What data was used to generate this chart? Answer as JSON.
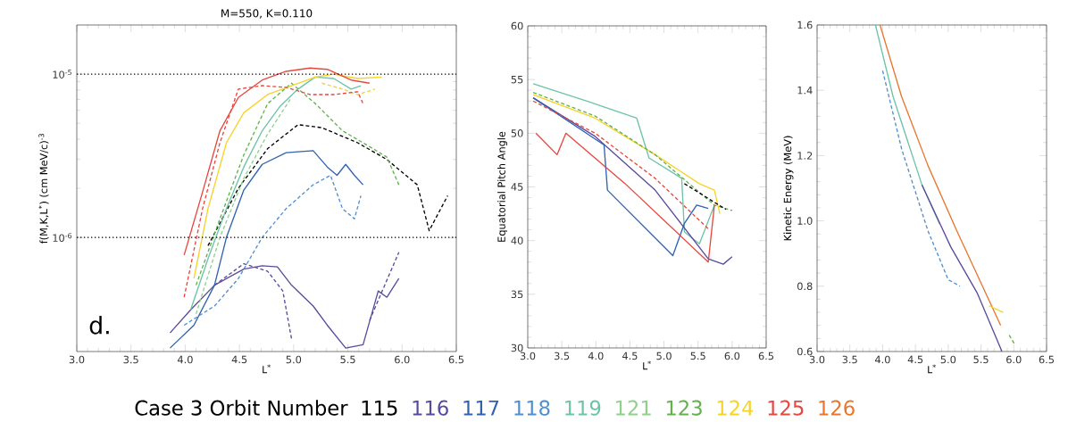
{
  "chart_data": [
    {
      "type": "line",
      "title": "M=550, K=0.110",
      "xlabel": "L$^{*}$",
      "ylabel": "f(M,K,L$^{*}$) (cm MeV/c)$^{-3}$",
      "log": "y",
      "legend": "bottom",
      "legend_title": "Case 3  Orbit Number",
      "xlim": [
        3,
        6.5
      ],
      "xticks": [
        {
          "value": 3,
          "label": "3.0"
        },
        3.5,
        {
          "value": 4,
          "label": "4.0"
        },
        4.5,
        {
          "value": 5,
          "label": "5.0"
        },
        5.5,
        {
          "value": 6,
          "label": "6.0"
        },
        6.5
      ],
      "ylim": [
        2e-07,
        2e-05
      ],
      "yticks": [
        {
          "value": 1e-06,
          "label": "10$^{-6}$"
        },
        {
          "value": 1e-05,
          "label": "10$^{-5}$"
        }
      ],
      "ref_lines": [
        {
          "axis": "y",
          "value": 1e-05,
          "line_style": "dotted",
          "color": "#000000"
        },
        {
          "axis": "y",
          "value": 1e-06,
          "line_style": "dotted",
          "color": "#000000"
        }
      ],
      "annotations": [
        "d."
      ],
      "series": [
        {
          "name": "115",
          "color": "#000000",
          "line_style": "dashed",
          "x": [
            4.21,
            4.49,
            4.76,
            5.04,
            5.26,
            5.59,
            5.86,
            6.14,
            6.25,
            6.42
          ],
          "values": [
            8.9e-07,
            2e-06,
            3.5e-06,
            4.9e-06,
            4.7e-06,
            3.8e-06,
            3e-06,
            2.1e-06,
            1.1e-06,
            1.8e-06
          ]
        },
        {
          "name": "116",
          "color": "#5a4a9e",
          "line_style": "solid",
          "x": [
            3.86,
            4.05,
            4.27,
            4.54,
            4.71,
            4.85,
            4.98,
            5.18,
            5.31,
            5.48,
            5.64,
            5.78,
            5.86,
            5.97
          ],
          "values": [
            2.6e-07,
            3.6e-07,
            5.1e-07,
            6.4e-07,
            6.7e-07,
            6.6e-07,
            5.1e-07,
            3.8e-07,
            2.9e-07,
            2.1e-07,
            2.2e-07,
            4.7e-07,
            4.3e-07,
            5.6e-07
          ]
        },
        {
          "color": "#5a4a9e",
          "line_style": "dashed",
          "x": [
            4.27,
            4.54,
            4.76,
            4.9,
            4.98,
            5.3,
            5.7,
            5.97
          ],
          "values": [
            5.1e-07,
            6.9e-07,
            6.2e-07,
            4.7e-07,
            2.4e-07,
            null,
            3.1e-07,
            8.1e-07
          ]
        },
        {
          "name": "117",
          "color": "#2f62b0",
          "line_style": "solid",
          "x": [
            3.86,
            4.08,
            4.27,
            4.38,
            4.54,
            4.71,
            4.93,
            5.18,
            5.31,
            5.4,
            5.48,
            5.56,
            5.64
          ],
          "values": [
            2.1e-07,
            2.9e-07,
            5.1e-07,
            1e-06,
            1.95e-06,
            2.8e-06,
            3.3e-06,
            3.4e-06,
            2.7e-06,
            2.4e-06,
            2.8e-06,
            2.4e-06,
            2.1e-06
          ]
        },
        {
          "name": "118",
          "color": "#4f8fd0",
          "line_style": "dashed",
          "x": [
            3.99,
            4.27,
            4.49,
            4.71,
            4.93,
            5.18,
            5.34,
            5.45,
            5.56,
            5.62
          ],
          "values": [
            2.9e-07,
            3.8e-07,
            5.6e-07,
            1e-06,
            1.5e-06,
            2.1e-06,
            2.4e-06,
            1.5e-06,
            1.3e-06,
            1.8e-06
          ]
        },
        {
          "name": "119",
          "color": "#6cc3a8",
          "line_style": "solid",
          "x": [
            4.05,
            4.21,
            4.38,
            4.54,
            4.71,
            4.87,
            5.04,
            5.2,
            5.37,
            5.53,
            5.62
          ],
          "values": [
            3.6e-07,
            7.4e-07,
            1.5e-06,
            2.7e-06,
            4.5e-06,
            6.3e-06,
            8.1e-06,
            9.6e-06,
            9.4e-06,
            8.1e-06,
            8.5e-06
          ]
        },
        {
          "name": "121",
          "color": "#8fd08a",
          "line_style": "dashed",
          "x": [
            4.1,
            4.32,
            4.54,
            4.76,
            4.98
          ],
          "values": [
            3.4e-07,
            1e-06,
            2.3e-06,
            4.3e-06,
            7.2e-06
          ]
        },
        {
          "name": "123",
          "color": "#62b24c",
          "line_style": "dashed",
          "x": [
            4.1,
            4.32,
            4.54,
            4.76,
            4.98,
            5.2,
            5.45,
            5.73,
            5.86,
            5.97
          ],
          "values": [
            5.1e-07,
            1.3e-06,
            3.2e-06,
            6.6e-06,
            8.8e-06,
            6.6e-06,
            4.5e-06,
            3.5e-06,
            3.1e-06,
            2.1e-06
          ]
        },
        {
          "name": "124",
          "color": "#f5d327",
          "line_style": "solid",
          "x": [
            4.08,
            4.21,
            4.38,
            4.54,
            4.76,
            4.98,
            5.2,
            5.37,
            5.59,
            5.81
          ],
          "values": [
            5.6e-07,
            1.5e-06,
            3.8e-06,
            5.8e-06,
            7.5e-06,
            8.5e-06,
            9.6e-06,
            1e-05,
            9.4e-06,
            9.6e-06
          ]
        },
        {
          "color": "#f5d327",
          "line_style": "dashed",
          "x": [
            5.26,
            5.45,
            5.59,
            5.75
          ],
          "values": [
            8.8e-06,
            8.1e-06,
            7.5e-06,
            8.1e-06
          ]
        },
        {
          "name": "125",
          "color": "#e8473f",
          "line_style": "solid",
          "x": [
            3.99,
            4.16,
            4.32,
            4.49,
            4.71,
            4.93,
            5.15,
            5.31,
            5.53,
            5.7
          ],
          "values": [
            7.8e-07,
            1.9e-06,
            4.5e-06,
            7.2e-06,
            9.2e-06,
            1.04e-05,
            1.09e-05,
            1.07e-05,
            9.2e-06,
            8.8e-06
          ]
        },
        {
          "color": "#e8473f",
          "line_style": "dashed",
          "x": [
            3.99,
            4.16,
            4.32,
            4.49,
            4.71,
            4.93,
            5.15,
            5.37,
            5.59,
            5.64
          ],
          "values": [
            4.3e-07,
            1.5e-06,
            3.8e-06,
            8.1e-06,
            8.5e-06,
            8.3e-06,
            7.5e-06,
            7.5e-06,
            7.8e-06,
            6.6e-06
          ]
        }
      ]
    },
    {
      "type": "line",
      "xlabel": "L$^{*}$",
      "ylabel": "Equatorial Pitch Angle",
      "xlim": [
        3,
        6.5
      ],
      "xticks": [
        {
          "value": 3,
          "label": "3.0"
        },
        3.5,
        {
          "value": 4,
          "label": "4.0"
        },
        4.5,
        {
          "value": 5,
          "label": "5.0"
        },
        5.5,
        {
          "value": 6,
          "label": "6.0"
        },
        6.5
      ],
      "ylim": [
        30,
        60
      ],
      "yticks": [
        30,
        35,
        40,
        45,
        50,
        55,
        60
      ],
      "series": [
        {
          "color": "#6cc3a8",
          "line_style": "solid",
          "x": [
            3.08,
            3.86,
            4.6,
            4.78,
            5.26,
            5.3,
            5.52,
            5.74
          ],
          "values": [
            54.6,
            53.0,
            51.4,
            47.7,
            45.8,
            40.8,
            39.7,
            43.3
          ]
        },
        {
          "color": "#f5d327",
          "line_style": "solid",
          "x": [
            3.08,
            3.99,
            4.87,
            5.52,
            5.74,
            5.82
          ],
          "values": [
            53.6,
            51.4,
            48.0,
            45.3,
            44.7,
            42.5
          ]
        },
        {
          "color": "#62b24c",
          "line_style": "dashed",
          "x": [
            3.08,
            3.99,
            4.87,
            5.74,
            6.0
          ],
          "values": [
            53.8,
            51.6,
            48.0,
            43.3,
            42.8
          ]
        },
        {
          "color": "#5a4a9e",
          "line_style": "solid",
          "x": [
            3.08,
            3.99,
            4.87,
            5.65,
            5.87,
            6.0
          ],
          "values": [
            53.3,
            49.7,
            44.7,
            38.3,
            37.8,
            38.5
          ]
        },
        {
          "color": "#2f62b0",
          "line_style": "solid",
          "x": [
            3.08,
            4.12,
            4.17,
            5.13,
            5.3,
            5.48,
            5.65
          ],
          "values": [
            53.3,
            48.9,
            44.7,
            38.6,
            41.6,
            43.3,
            43.0
          ]
        },
        {
          "color": "#e8473f",
          "line_style": "solid",
          "x": [
            3.12,
            3.43,
            3.56,
            4.43,
            5.65,
            5.74
          ],
          "values": [
            50.0,
            48.0,
            50.0,
            45.3,
            38.0,
            43.3
          ]
        },
        {
          "color": "#e8473f",
          "line_style": "dashed",
          "x": [
            3.08,
            3.99,
            4.87,
            5.65
          ],
          "values": [
            53.0,
            50.0,
            45.8,
            41.1
          ]
        },
        {
          "color": "#000000",
          "line_style": "dashed",
          "x": [
            5.3,
            5.91
          ],
          "values": [
            45.3,
            42.9
          ]
        }
      ]
    },
    {
      "type": "line",
      "xlabel": "L$^{*}$",
      "ylabel": "Kinetic Energy (MeV)",
      "xlim": [
        3,
        6.5
      ],
      "xticks": [
        {
          "value": 3,
          "label": "3.0"
        },
        3.5,
        {
          "value": 4,
          "label": "4.0"
        },
        4.5,
        {
          "value": 5,
          "label": "5.0"
        },
        5.5,
        {
          "value": 6,
          "label": "6.0"
        },
        6.5
      ],
      "ylim": [
        0.6,
        1.6
      ],
      "yticks": [
        0.6,
        0.8,
        {
          "value": 1,
          "label": "1.0"
        },
        1.2,
        1.4,
        1.6
      ],
      "series": [
        {
          "name": "126",
          "color": "#e8762f",
          "line_style": "solid",
          "x": [
            3.96,
            4.29,
            4.69,
            5.13,
            5.8
          ],
          "values": [
            1.6,
            1.38,
            1.17,
            0.97,
            0.68
          ]
        },
        {
          "color": "#6cc3a8",
          "line_style": "solid",
          "x": [
            3.89,
            4.16,
            4.6,
            4.87
          ],
          "values": [
            1.6,
            1.38,
            1.11,
            0.99
          ]
        },
        {
          "color": "#5a4a9e",
          "line_style": "solid",
          "x": [
            4.6,
            5.04,
            5.44,
            5.82
          ],
          "values": [
            1.11,
            0.92,
            0.78,
            0.6
          ]
        },
        {
          "color": "#4f8fd0",
          "line_style": "dashed",
          "x": [
            4.0,
            4.29,
            4.69,
            5.0,
            5.18
          ],
          "values": [
            1.46,
            1.22,
            0.97,
            0.82,
            0.8
          ]
        },
        {
          "color": "#f5d327",
          "line_style": "solid",
          "x": [
            5.62,
            5.84
          ],
          "values": [
            0.74,
            0.72
          ]
        },
        {
          "color": "#62b24c",
          "line_style": "dashed",
          "x": [
            5.93,
            6.02
          ],
          "values": [
            0.65,
            0.62
          ]
        }
      ]
    }
  ]
}
